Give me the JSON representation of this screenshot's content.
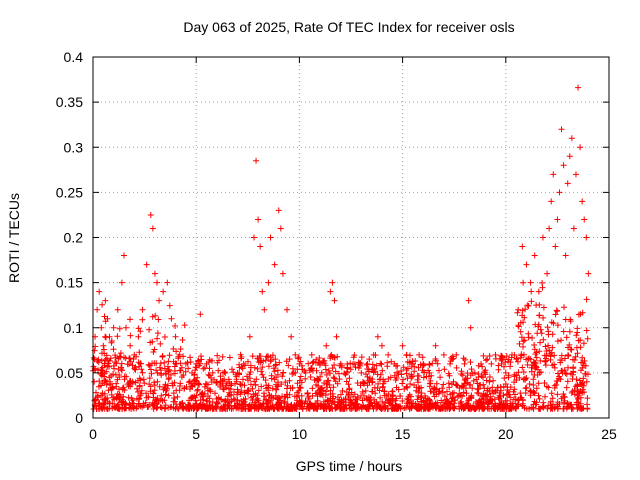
{
  "chart_data": {
    "type": "scatter",
    "title": "Day 063 of 2025, Rate Of TEC Index for receiver osls",
    "xlabel": "GPS time / hours",
    "ylabel": "ROTI / TECUs",
    "xlim": [
      0,
      25
    ],
    "ylim": [
      0,
      0.4
    ],
    "xticks": [
      0,
      5,
      10,
      15,
      20,
      25
    ],
    "xtick_labels": [
      "0",
      "5",
      "10",
      "15",
      "20",
      "25"
    ],
    "yticks": [
      0,
      0.05,
      0.1,
      0.15,
      0.2,
      0.25,
      0.3,
      0.35,
      0.4
    ],
    "ytick_labels": [
      "0",
      "0.05",
      "0.1",
      "0.15",
      "0.2",
      "0.25",
      "0.3",
      "0.35",
      "0.4"
    ],
    "grid": true,
    "marker": "plus",
    "color": "#ff0000",
    "series": [
      {
        "name": "ROTI",
        "x": [
          0.1,
          0.2,
          0.3,
          0.4,
          0.5,
          0.6,
          0.7,
          0.8,
          1.0,
          1.2,
          1.4,
          1.5,
          1.6,
          1.8,
          2.0,
          2.2,
          2.4,
          2.6,
          2.8,
          2.9,
          3.0,
          3.1,
          3.2,
          3.4,
          3.6,
          3.8,
          4.0,
          4.2,
          4.5,
          4.8,
          5.0,
          5.2,
          5.5,
          5.8,
          6.0,
          6.3,
          6.6,
          7.0,
          7.3,
          7.6,
          7.8,
          7.9,
          8.0,
          8.1,
          8.2,
          8.3,
          8.5,
          8.6,
          8.8,
          9.0,
          9.1,
          9.2,
          9.4,
          9.6,
          9.8,
          10.0,
          10.3,
          10.6,
          11.0,
          11.3,
          11.5,
          11.6,
          11.7,
          11.8,
          12.0,
          12.3,
          12.6,
          13.0,
          13.3,
          13.6,
          13.8,
          14.0,
          14.3,
          14.6,
          15.0,
          15.2,
          15.5,
          15.8,
          16.0,
          16.3,
          16.6,
          17.0,
          17.3,
          17.6,
          18.0,
          18.2,
          18.3,
          18.5,
          18.8,
          19.0,
          19.3,
          19.5,
          19.8,
          20.0,
          20.3,
          20.6,
          20.8,
          21.0,
          21.2,
          21.4,
          21.6,
          21.8,
          22.0,
          22.1,
          22.2,
          22.3,
          22.4,
          22.5,
          22.6,
          22.7,
          22.8,
          22.9,
          23.0,
          23.1,
          23.2,
          23.3,
          23.4,
          23.5,
          23.6,
          23.7,
          23.8,
          23.9,
          24.0
        ],
        "y": [
          0.09,
          0.12,
          0.14,
          0.1,
          0.08,
          0.13,
          0.11,
          0.09,
          0.1,
          0.12,
          0.15,
          0.18,
          0.1,
          0.08,
          0.07,
          0.09,
          0.12,
          0.17,
          0.225,
          0.21,
          0.16,
          0.15,
          0.13,
          0.14,
          0.15,
          0.11,
          0.09,
          0.07,
          0.06,
          0.05,
          0.06,
          0.115,
          0.06,
          0.05,
          0.04,
          0.05,
          0.04,
          0.05,
          0.06,
          0.09,
          0.2,
          0.285,
          0.22,
          0.19,
          0.14,
          0.12,
          0.15,
          0.2,
          0.17,
          0.23,
          0.21,
          0.16,
          0.12,
          0.09,
          0.07,
          0.06,
          0.05,
          0.07,
          0.06,
          0.08,
          0.14,
          0.15,
          0.13,
          0.09,
          0.06,
          0.05,
          0.06,
          0.05,
          0.06,
          0.07,
          0.09,
          0.08,
          0.07,
          0.06,
          0.08,
          0.07,
          0.06,
          0.07,
          0.06,
          0.05,
          0.08,
          0.07,
          0.06,
          0.07,
          0.06,
          0.13,
          0.1,
          0.05,
          0.06,
          0.05,
          0.06,
          0.07,
          0.06,
          0.05,
          0.07,
          0.12,
          0.19,
          0.17,
          0.15,
          0.18,
          0.14,
          0.2,
          0.16,
          0.21,
          0.24,
          0.27,
          0.19,
          0.22,
          0.25,
          0.32,
          0.28,
          0.18,
          0.26,
          0.29,
          0.31,
          0.21,
          0.27,
          0.366,
          0.3,
          0.24,
          0.22,
          0.2,
          0.16
        ]
      }
    ]
  }
}
